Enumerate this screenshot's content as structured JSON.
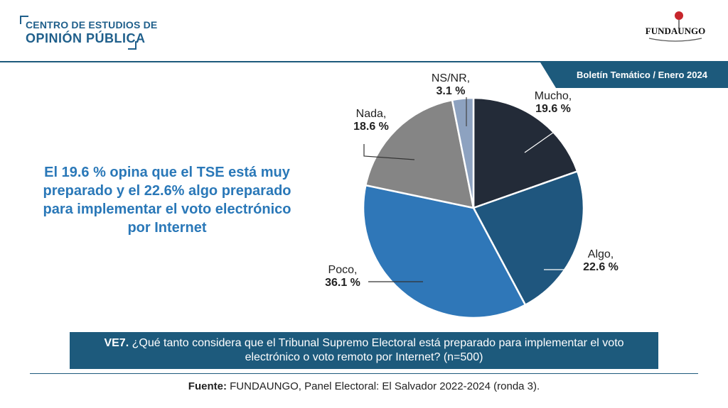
{
  "header": {
    "logo_line1": "CENTRO DE ESTUDIOS DE",
    "logo_line2": "OPINIÓN PÚBLICA",
    "partner_logo_text": "FUNDAUNGO",
    "bulletin": "Boletín Temático / Enero 2024"
  },
  "headline": "El 19.6 % opina que el TSE está muy preparado y el 22.6% algo preparado para implementar el voto electrónico por Internet",
  "question": {
    "code": "VE7.",
    "text": "¿Qué tanto considera que el Tribunal Supremo Electoral está preparado para implementar el voto electrónico o voto remoto por Internet? (n=500)"
  },
  "source": {
    "label": "Fuente:",
    "text": "FUNDAUNGO, Panel Electoral: El Salvador 2022-2024 (ronda 3)."
  },
  "colors": {
    "accent": "#1d5a7c",
    "headline": "#2a78b8"
  },
  "chart_data": {
    "type": "pie",
    "title": "",
    "slices": [
      {
        "label": "Mucho,",
        "value_label": "19.6 %",
        "value": 19.6,
        "color": "#232b38"
      },
      {
        "label": "Algo,",
        "value_label": "22.6 %",
        "value": 22.6,
        "color": "#1f567e"
      },
      {
        "label": "Poco,",
        "value_label": "36.1 %",
        "value": 36.1,
        "color": "#2f77b8"
      },
      {
        "label": "Nada,",
        "value_label": "18.6 %",
        "value": 18.6,
        "color": "#858585"
      },
      {
        "label": "NS/NR,",
        "value_label": "3.1 %",
        "value": 3.1,
        "color": "#8da2c0"
      }
    ]
  }
}
